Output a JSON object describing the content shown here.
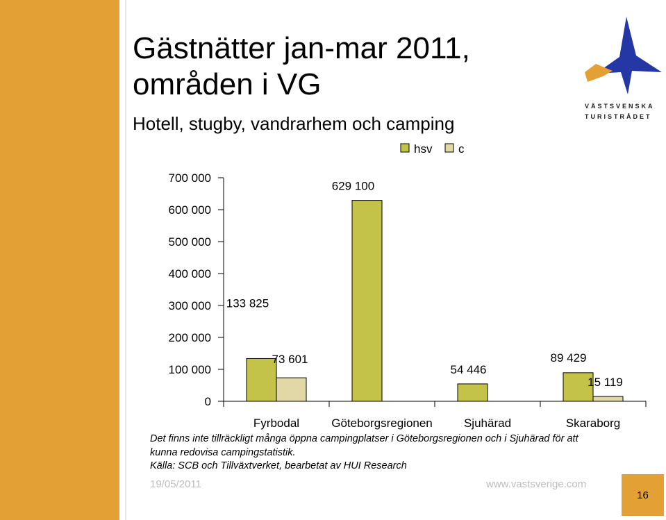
{
  "slide": {
    "title_line1": "Gästnätter jan-mar 2011,",
    "title_line2": "områden i VG",
    "subtitle": "Hotell, stugby, vandrarhem och camping",
    "logo_line1": "VÄSTSVENSKA",
    "logo_line2": "TURISTRÅDET",
    "note_line1": "Det finns inte tillräckligt många öppna campingplatser i Göteborgsregionen och i Sjuhärad för att",
    "note_line2": "kunna redovisa campingstatistik.",
    "source": "Källa: SCB och Tillväxtverket, bearbetat av HUI Research",
    "date": "19/05/2011",
    "url": "www.vastsverige.com",
    "page_number": "16"
  },
  "colors": {
    "sidebar": "#e2a035",
    "hsv": "#c3c34a",
    "c": "#e2d7a7"
  },
  "chart_data": {
    "type": "bar",
    "categories": [
      "Fyrbodal",
      "Göteborgsregionen",
      "Sjuhärad",
      "Skaraborg"
    ],
    "series": [
      {
        "name": "hsv",
        "values": [
          133825,
          629100,
          54446,
          89429
        ],
        "labels": [
          "133 825",
          "629 100",
          "54 446",
          "89 429"
        ]
      },
      {
        "name": "c",
        "values": [
          73601,
          null,
          null,
          15119
        ],
        "labels": [
          "73 601",
          "",
          "",
          "15 119"
        ]
      }
    ],
    "yticks": [
      "0",
      "100 000",
      "200 000",
      "300 000",
      "400 000",
      "500 000",
      "600 000",
      "700 000"
    ],
    "ylim": [
      0,
      700000
    ],
    "legend": "top-right"
  }
}
